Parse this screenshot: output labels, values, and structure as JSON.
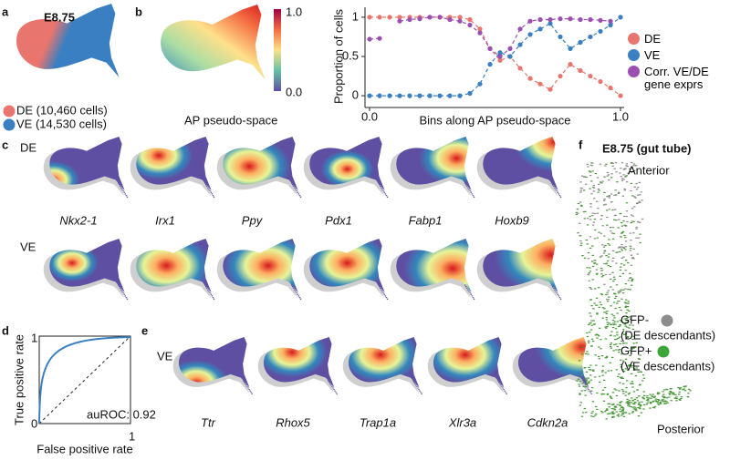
{
  "panels": {
    "a": {
      "label": "a",
      "title": "E8.75",
      "legend": [
        "DE (10,460 cells)",
        "VE (14,530 cells)"
      ]
    },
    "b": {
      "label": "b",
      "colorbar_max": "1.0",
      "colorbar_min": "0.0",
      "caption": "AP pseudo-space"
    },
    "c": {
      "label": "c",
      "rows": [
        "DE",
        "VE"
      ],
      "genes": [
        "Nkx2-1",
        "Irx1",
        "Ppy",
        "Pdx1",
        "Fabp1",
        "Hoxb9"
      ]
    },
    "d": {
      "label": "d",
      "ylabel": "True positive rate",
      "xlabel": "False positive rate",
      "y_top": "1",
      "origin": "0",
      "x_right": "1",
      "annotation": "auROC: 0.92"
    },
    "e": {
      "label": "e",
      "row": "VE",
      "genes": [
        "Ttr",
        "Rhox5",
        "Trap1a",
        "Xlr3a",
        "Cdkn2a"
      ]
    },
    "f": {
      "label": "f",
      "title": "E8.75 (gut tube)",
      "top": "Anterior",
      "bottom": "Posterior",
      "legend": [
        {
          "name": "GFP-",
          "note": "(DE descendants)"
        },
        {
          "name": "GFP+",
          "note": "(VE descendants)"
        }
      ]
    }
  },
  "chart_data": {
    "type": "line",
    "xlabel": "Bins along AP pseudo-space",
    "ylabel": "Proportion of cells",
    "x": [
      0,
      0.04,
      0.08,
      0.12,
      0.16,
      0.2,
      0.24,
      0.28,
      0.32,
      0.36,
      0.4,
      0.44,
      0.48,
      0.52,
      0.56,
      0.6,
      0.64,
      0.68,
      0.72,
      0.76,
      0.8,
      0.84,
      0.88,
      0.92,
      0.96,
      1
    ],
    "series": [
      {
        "name": "DE",
        "color": "#e8756e",
        "values": [
          1,
          1,
          1,
          1,
          1,
          1,
          1,
          1,
          1,
          1,
          0.97,
          0.85,
          0.6,
          0.45,
          0.5,
          0.35,
          0.22,
          0.15,
          0.08,
          0.25,
          0.4,
          0.32,
          0.25,
          0.18,
          0.1,
          0
        ]
      },
      {
        "name": "VE",
        "color": "#3a7fc1",
        "values": [
          0,
          0,
          0,
          0,
          0,
          0,
          0,
          0,
          0,
          0,
          0.03,
          0.15,
          0.4,
          0.55,
          0.5,
          0.65,
          0.78,
          0.85,
          0.92,
          0.75,
          0.6,
          0.68,
          0.75,
          0.82,
          0.9,
          1
        ]
      },
      {
        "name": "Corr. VE/DE gene exprs",
        "color": "#9b4fb0",
        "values": [
          0.72,
          0.73,
          null,
          0.95,
          0.97,
          0.98,
          1,
          1,
          0.97,
          0.95,
          0.9,
          0.8,
          0.6,
          0.5,
          0.6,
          0.85,
          0.95,
          0.97,
          0.97,
          0.98,
          0.98,
          0.97,
          0.97,
          0.96,
          0.95,
          null
        ]
      }
    ],
    "xlim": [
      0,
      1
    ],
    "ylim": [
      -0.08,
      1.08
    ],
    "xticks": [
      {
        "value": 0,
        "label": "0.0"
      },
      {
        "value": 1,
        "label": "1.0"
      }
    ],
    "yticks": [
      0,
      0.5,
      1
    ],
    "legend": "right",
    "line_style": "dashed"
  }
}
